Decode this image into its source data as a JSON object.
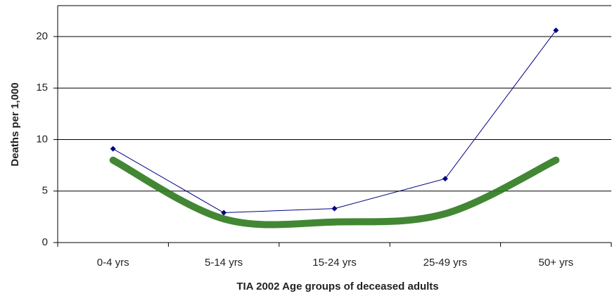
{
  "chart_data": {
    "type": "line",
    "x_label": "TIA 2002 Age groups of deceased adults",
    "y_label": "Deaths per 1,000",
    "categories": [
      "0-4 yrs",
      "5-14 yrs",
      "15-24 yrs",
      "25-49 yrs",
      "50+ yrs"
    ],
    "series": [
      {
        "color": "#000080",
        "values": [
          9.1,
          2.9,
          3.3,
          6.2,
          20.6
        ],
        "marker": true,
        "width": 1
      },
      {
        "color": "#2e7a1e",
        "values": [
          8,
          2.3,
          2,
          2.8,
          8
        ],
        "marker": false,
        "width": 10
      }
    ],
    "ylim": [
      0,
      23
    ],
    "yticks": [
      0,
      5,
      10,
      15,
      20
    ],
    "grid": true
  }
}
